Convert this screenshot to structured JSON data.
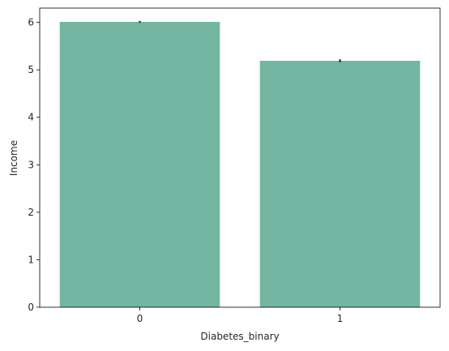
{
  "chart_data": {
    "type": "bar",
    "categories": [
      "0",
      "1"
    ],
    "values": [
      6.01,
      5.19
    ],
    "error_bars": [
      [
        5.99,
        6.03
      ],
      [
        5.16,
        5.22
      ]
    ],
    "xlabel": "Diabetes_binary",
    "ylabel": "Income",
    "ylim": [
      0,
      6.3
    ],
    "yticks": [
      "0",
      "1",
      "2",
      "3",
      "4",
      "5",
      "6"
    ],
    "grid": false,
    "bar_color": "#73b5a0",
    "errorbar_color": "#3d3d3d"
  }
}
